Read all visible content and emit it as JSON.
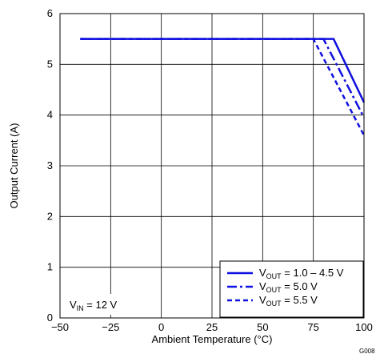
{
  "chart_data": {
    "type": "line",
    "xlabel": "Ambient Temperature (°C)",
    "ylabel": "Output Current (A)",
    "xlim": [
      -50,
      100
    ],
    "ylim": [
      0,
      6
    ],
    "x_ticks": [
      -50,
      -25,
      0,
      25,
      50,
      75,
      100
    ],
    "y_ticks": [
      0,
      1,
      2,
      3,
      4,
      5,
      6
    ],
    "x_tick_labels": [
      "−50",
      "−25",
      "0",
      "25",
      "50",
      "75",
      "100"
    ],
    "y_tick_labels": [
      "0",
      "1",
      "2",
      "3",
      "4",
      "5",
      "6"
    ],
    "grid": true,
    "legend_position": "bottom-right",
    "series": [
      {
        "label_main": "V",
        "label_sub": "OUT",
        "label_rest": " = 1.0 – 4.5 V",
        "style": "solid",
        "x": [
          -40,
          85,
          100
        ],
        "y": [
          5.5,
          5.5,
          4.25
        ]
      },
      {
        "label_main": "V",
        "label_sub": "OUT",
        "label_rest": " = 5.0 V",
        "style": "dashdot",
        "x": [
          -40,
          80,
          100
        ],
        "y": [
          5.5,
          5.5,
          3.95
        ]
      },
      {
        "label_main": "V",
        "label_sub": "OUT",
        "label_rest": " = 5.5 V",
        "style": "dashed",
        "x": [
          -40,
          75,
          100
        ],
        "y": [
          5.5,
          5.5,
          3.6
        ]
      }
    ],
    "color": "#1010e0",
    "annotation": {
      "main": "V",
      "sub": "IN",
      "rest": " = 12 V"
    },
    "figure_code": "G008"
  }
}
